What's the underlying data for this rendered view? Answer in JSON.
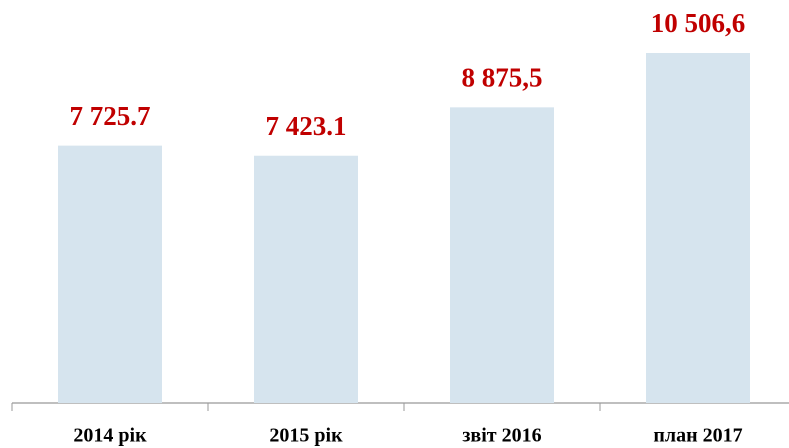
{
  "chart_data": {
    "type": "bar",
    "categories": [
      "2014 рік",
      "2015 рік",
      "звіт 2016",
      "план 2017"
    ],
    "values": [
      7725.7,
      7423.1,
      8875.5,
      10506.6
    ],
    "value_labels": [
      "7 725.7",
      "7 423.1",
      "8 875,5",
      "10 506,6"
    ],
    "color": "#d6e4ee",
    "label_color": "#c00000"
  }
}
